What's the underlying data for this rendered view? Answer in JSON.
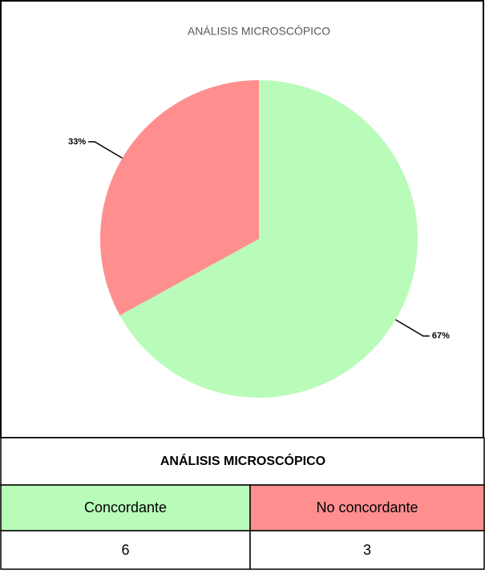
{
  "chart_data": {
    "type": "pie",
    "title": "ANÁLISIS MICROSCÓPICO",
    "categories": [
      "Concordante",
      "No concordante"
    ],
    "values": [
      67,
      33
    ],
    "value_labels": [
      "67%",
      "33%"
    ],
    "colors": [
      "#b9fbb9",
      "#ff8f8f"
    ]
  },
  "table": {
    "title": "ANÁLISIS MICROSCÓPICO",
    "headers": [
      "Concordante",
      "No concordante"
    ],
    "rows": [
      [
        6,
        3
      ]
    ]
  }
}
